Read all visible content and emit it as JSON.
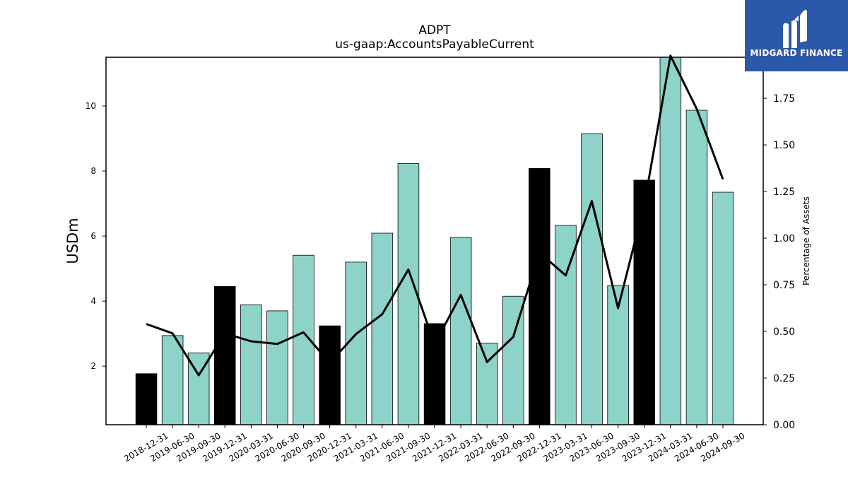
{
  "chart_data": {
    "type": "bar",
    "title": "ADPT",
    "subtitle": "us-gaap:AccountsPayableCurrent",
    "ylabel": "USDm",
    "ylabel_right": "Percentage of Assets",
    "ylim": [
      0.2,
      11.5
    ],
    "ylim_right": [
      0,
      1.97
    ],
    "yticks": [
      2,
      4,
      6,
      8,
      10
    ],
    "yticks_right": [
      "0.00",
      "0.25",
      "0.50",
      "0.75",
      "1.00",
      "1.25",
      "1.50",
      "1.75"
    ],
    "yticks_right_values": [
      0,
      0.25,
      0.5,
      0.75,
      1.0,
      1.25,
      1.5,
      1.75
    ],
    "categories": [
      "2018-12-31",
      "2019-06-30",
      "2019-09-30",
      "2019-12-31",
      "2020-03-31",
      "2020-06-30",
      "2020-09-30",
      "2020-12-31",
      "2021-03-31",
      "2021-06-30",
      "2021-09-30",
      "2021-12-31",
      "2022-03-31",
      "2022-06-30",
      "2022-09-30",
      "2022-12-31",
      "2023-03-31",
      "2023-06-30",
      "2023-09-30",
      "2023-12-31",
      "2024-03-31",
      "2024-06-30",
      "2024-09-30"
    ],
    "series": [
      {
        "type": "bar",
        "values": [
          1.77,
          2.94,
          2.41,
          4.45,
          3.89,
          3.7,
          5.41,
          3.24,
          5.2,
          6.09,
          8.23,
          3.31,
          5.96,
          2.71,
          4.15,
          8.08,
          6.33,
          9.15,
          4.48,
          7.72,
          11.5,
          9.87,
          7.35
        ],
        "annual": [
          true,
          false,
          false,
          true,
          false,
          false,
          false,
          true,
          false,
          false,
          false,
          true,
          false,
          false,
          false,
          true,
          false,
          false,
          false,
          true,
          false,
          false,
          false
        ]
      },
      {
        "type": "line",
        "axis": "right",
        "values": [
          0.54,
          0.49,
          0.265,
          0.49,
          0.447,
          0.433,
          0.495,
          0.331,
          0.486,
          0.592,
          0.832,
          0.431,
          0.696,
          0.336,
          0.471,
          0.923,
          0.8,
          1.199,
          0.625,
          1.179,
          1.978,
          1.693,
          1.316
        ]
      }
    ],
    "colors": {
      "annual_bar": "#000000",
      "quarter_bar": "#8dd3c7",
      "line": "#000000"
    },
    "grid": false
  },
  "logo": {
    "text": "MIDGARD FINANCE"
  }
}
